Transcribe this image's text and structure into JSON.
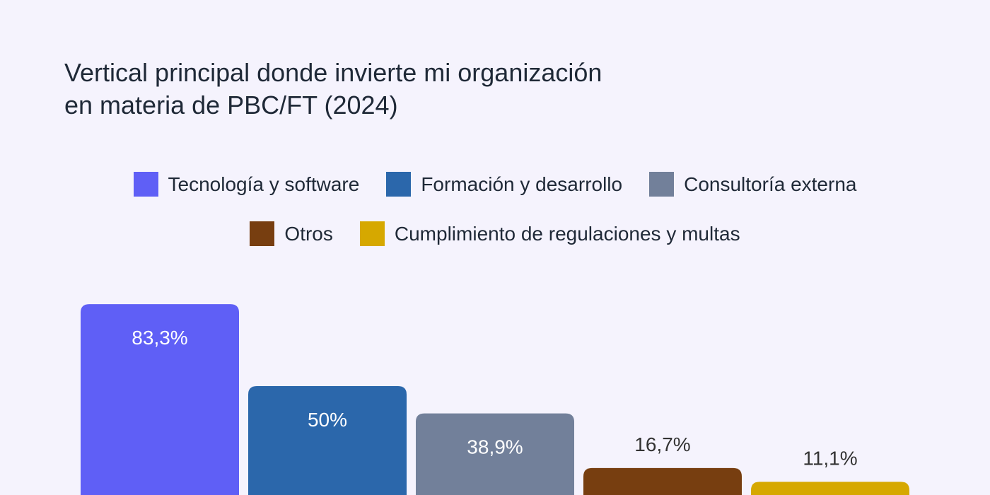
{
  "chart_data": {
    "type": "bar",
    "title": "Vertical principal donde invierte mi organización en materia de PBC/FT (2024)",
    "title_lines": [
      "Vertical principal donde invierte mi organización",
      "en materia de PBC/FT (2024)"
    ],
    "categories": [
      "Tecnología y software",
      "Formación y desarrollo",
      "Consultoría externa",
      "Otros",
      "Cumplimiento de regulaciones y multas"
    ],
    "values": [
      83.3,
      50,
      38.9,
      16.7,
      11.1
    ],
    "value_labels": [
      "83,3%",
      "50%",
      "38,9%",
      "16,7%",
      "11,1%"
    ],
    "colors": [
      "#5f5ff6",
      "#2b67ab",
      "#72809a",
      "#773e10",
      "#d6a800"
    ],
    "label_colors": [
      "#ffffff",
      "#ffffff",
      "#ffffff",
      "#333333",
      "#333333"
    ],
    "legend_rows": [
      [
        0,
        1,
        2
      ],
      [
        3,
        4
      ]
    ],
    "ylim": [
      0,
      100
    ],
    "legend_position": "top-center",
    "grid": false
  }
}
